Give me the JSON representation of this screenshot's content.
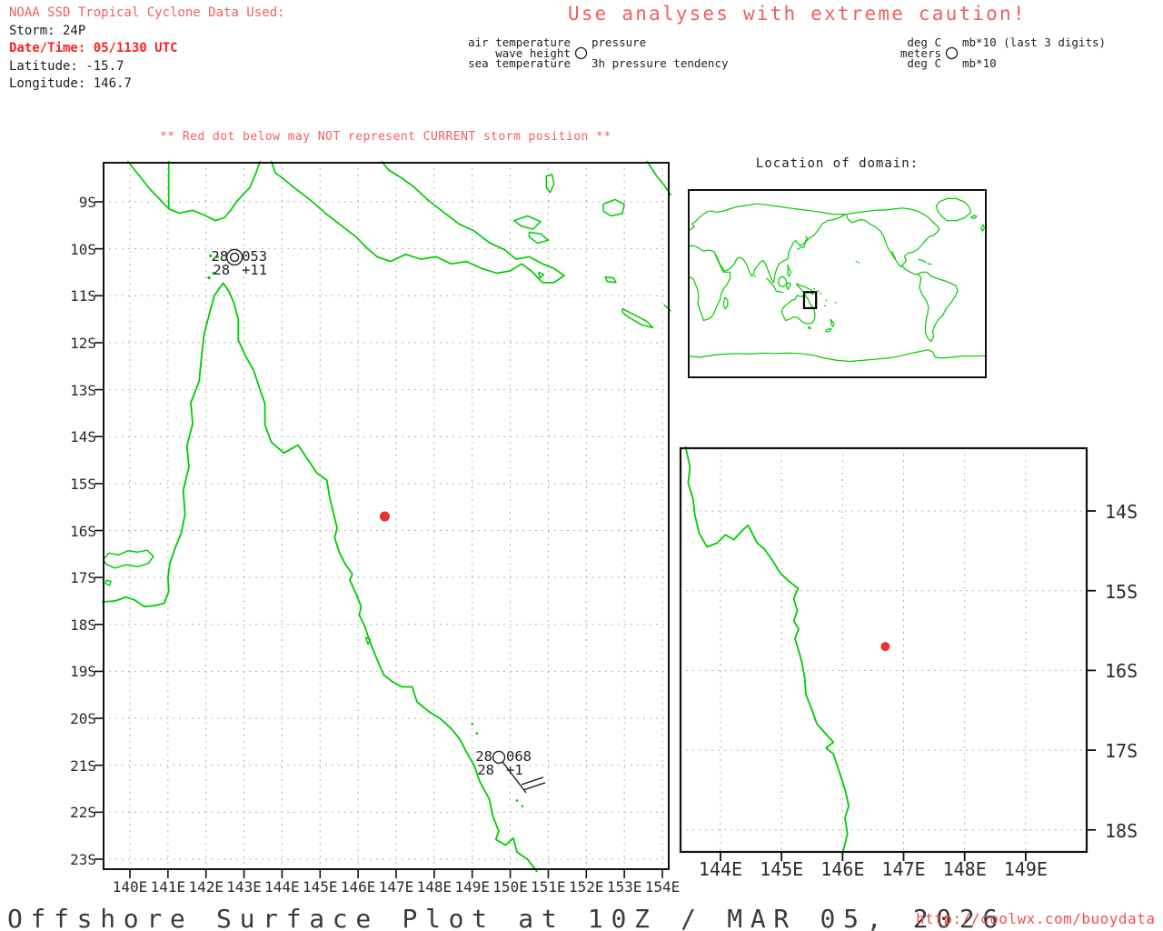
{
  "colors": {
    "accent_red": "#f25f5f",
    "alert_red": "#ff2020",
    "dot_red": "#e83333",
    "coast_green": "#00cc00",
    "grid_gray": "#b4b4b4",
    "ink": "#222222"
  },
  "info_panel": {
    "source": "NOAA SSD Tropical Cyclone Data Used:",
    "storm": "Storm: 24P",
    "datetime": "Date/Time: 05/1130 UTC",
    "latitude": "Latitude: -15.7",
    "longitude": "Longitude: 146.7"
  },
  "caution_banner": "Use analyses with extreme caution!",
  "station_key": {
    "labels": {
      "air": "air temperature",
      "wave": "wave height",
      "sea": "sea temperature",
      "pressure": "pressure",
      "tendency": "3h pressure tendency"
    },
    "units": {
      "air": "deg C",
      "wave": "meters",
      "sea": "deg C",
      "pressure": "mb*10 (last 3 digits)",
      "tendency": "mb*10"
    }
  },
  "warning_note": "** Red dot below may NOT represent CURRENT storm position **",
  "main_map": {
    "lat_labels": [
      "9S",
      "10S",
      "11S",
      "12S",
      "13S",
      "14S",
      "15S",
      "16S",
      "17S",
      "18S",
      "19S",
      "20S",
      "21S",
      "22S",
      "23S"
    ],
    "lon_labels": [
      "140E",
      "141E",
      "142E",
      "143E",
      "144E",
      "145E",
      "146E",
      "147E",
      "148E",
      "149E",
      "150E",
      "151E",
      "152E",
      "153E",
      "154E"
    ],
    "stations": [
      {
        "air": "28",
        "pressure": "053",
        "sea": "28",
        "tendency": "+11",
        "wind": "calm",
        "lon": 142.75,
        "lat": 10.18
      },
      {
        "air": "28",
        "pressure": "068",
        "sea": "28",
        "tendency": "+1",
        "wind": "barb-from-se",
        "lon": 149.7,
        "lat": 20.83
      }
    ],
    "storm_dot": {
      "lon": 146.7,
      "lat": 15.7
    }
  },
  "inset_map": {
    "title": "Location of domain:"
  },
  "zoom_map": {
    "lon_labels": [
      "144E",
      "145E",
      "146E",
      "147E",
      "148E",
      "149E"
    ],
    "lat_labels": [
      "14S",
      "15S",
      "16S",
      "17S",
      "18S"
    ],
    "storm_dot": {
      "lon": 146.7,
      "lat": 15.7
    }
  },
  "footer": {
    "title": "Offshore Surface Plot at 10Z / MAR 05, 2026",
    "url": "http://coolwx.com/buoydata"
  }
}
